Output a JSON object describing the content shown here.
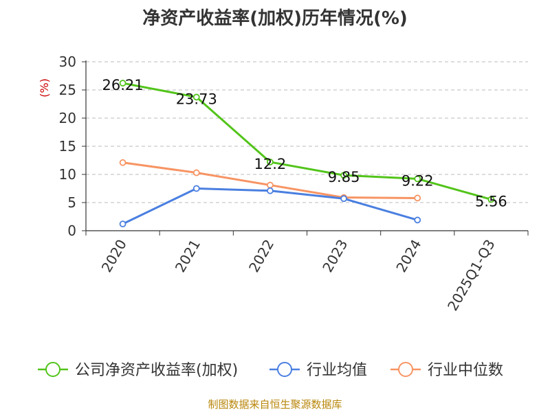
{
  "source_note": "制图数据来自恒生聚源数据库",
  "colors": {
    "company": "#52c41a",
    "avg": "#4a7fe0",
    "median": "#f79463",
    "axis": "#333333",
    "grid": "#bbbbbb",
    "unit": "#cc0000"
  },
  "chart_data": {
    "type": "line",
    "title": "净资产收益率(加权)历年情况(%)",
    "ylabel": "(%)",
    "xlabel": "",
    "categories": [
      "2020",
      "2021",
      "2022",
      "2023",
      "2024",
      "2025Q1-Q3"
    ],
    "ylim": [
      0,
      30
    ],
    "yticks": [
      0,
      5,
      10,
      15,
      20,
      25,
      30
    ],
    "grid": true,
    "legend_position": "bottom",
    "series": [
      {
        "name": "公司净资产收益率(加权)",
        "color_key": "company",
        "values": [
          26.21,
          23.73,
          12.2,
          9.85,
          9.22,
          5.56
        ],
        "data_labels": [
          "26.21",
          "23.73",
          "12.2",
          "9.85",
          "9.22",
          "5.56"
        ]
      },
      {
        "name": "行业均值",
        "color_key": "avg",
        "values": [
          1.2,
          7.5,
          7.1,
          5.7,
          1.9,
          null
        ]
      },
      {
        "name": "行业中位数",
        "color_key": "median",
        "values": [
          12.1,
          10.3,
          8.1,
          5.9,
          5.8,
          null
        ]
      }
    ]
  }
}
